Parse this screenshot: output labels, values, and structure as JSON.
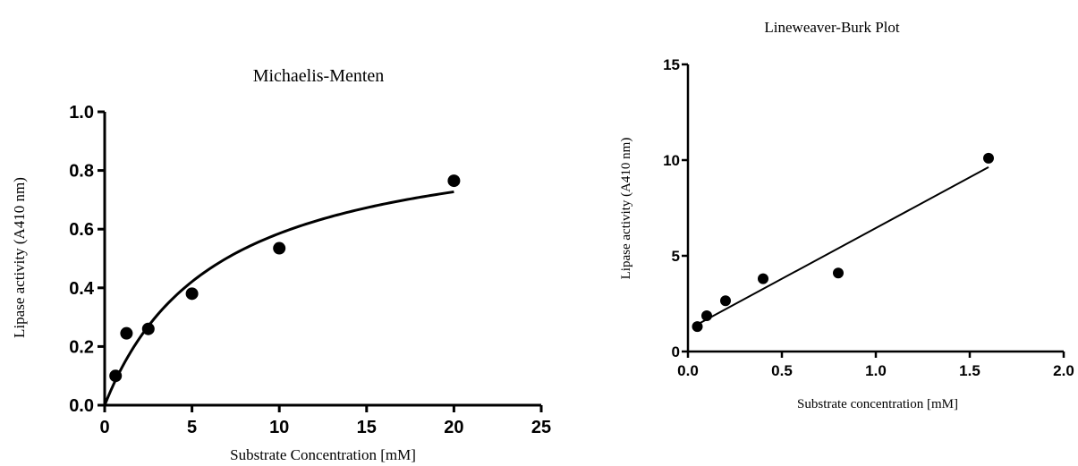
{
  "chart_data": [
    {
      "type": "scatter",
      "title": "Michaelis-Menten",
      "xlabel": "Substrate Concentration [mM]",
      "ylabel": "Lipase activity (A410 nm)",
      "xlim": [
        0,
        25
      ],
      "ylim": [
        0,
        1.0
      ],
      "xticks": [
        0,
        5,
        10,
        15,
        20,
        25
      ],
      "yticks": [
        0.0,
        0.2,
        0.4,
        0.6,
        0.8,
        1.0
      ],
      "xtick_labels": [
        "0",
        "5",
        "10",
        "15",
        "20",
        "25"
      ],
      "ytick_labels": [
        "0.0",
        "0.2",
        "0.4",
        "0.6",
        "0.8",
        "1.0"
      ],
      "grid": false,
      "series": [
        {
          "points": [
            {
              "x": 0.625,
              "y": 0.1
            },
            {
              "x": 1.25,
              "y": 0.245
            },
            {
              "x": 2.5,
              "y": 0.26
            },
            {
              "x": 5,
              "y": 0.38
            },
            {
              "x": 10,
              "y": 0.535
            },
            {
              "x": 20,
              "y": 0.765
            }
          ],
          "color": "#000000"
        }
      ],
      "fit": {
        "model": "michaelis-menten",
        "Vmax": 0.96,
        "Km": 6.4,
        "x_range": [
          0,
          20
        ]
      }
    },
    {
      "type": "scatter",
      "title": "Lineweaver-Burk Plot",
      "xlabel": "Substrate concentration [mM]",
      "ylabel": "Lipase activity (A410 nm)",
      "xlim": [
        0,
        2.0
      ],
      "ylim": [
        0,
        15
      ],
      "xticks": [
        0,
        0.5,
        1.0,
        1.5,
        2.0
      ],
      "yticks": [
        0,
        5,
        10,
        15
      ],
      "xtick_labels": [
        "0.0",
        "0.5",
        "1.0",
        "1.5",
        "2.0"
      ],
      "ytick_labels": [
        "0",
        "5",
        "10",
        "15"
      ],
      "grid": false,
      "series": [
        {
          "points": [
            {
              "x": 0.05,
              "y": 1.3
            },
            {
              "x": 0.1,
              "y": 1.87
            },
            {
              "x": 0.2,
              "y": 2.65
            },
            {
              "x": 0.4,
              "y": 3.8
            },
            {
              "x": 0.8,
              "y": 4.1
            },
            {
              "x": 1.6,
              "y": 10.1
            }
          ],
          "color": "#000000"
        }
      ],
      "fit": {
        "model": "linear",
        "slope": 5.3,
        "intercept": 1.15,
        "x_range": [
          0.05,
          1.6
        ]
      }
    }
  ]
}
